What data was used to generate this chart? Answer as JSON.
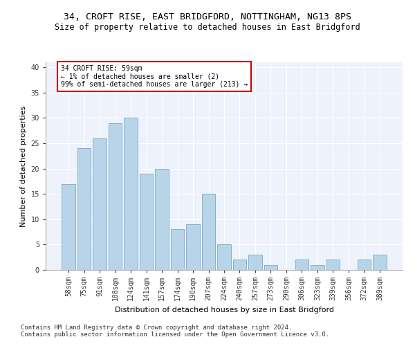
{
  "title_line1": "34, CROFT RISE, EAST BRIDGFORD, NOTTINGHAM, NG13 8PS",
  "title_line2": "Size of property relative to detached houses in East Bridgford",
  "xlabel": "Distribution of detached houses by size in East Bridgford",
  "ylabel": "Number of detached properties",
  "categories": [
    "58sqm",
    "75sqm",
    "91sqm",
    "108sqm",
    "124sqm",
    "141sqm",
    "157sqm",
    "174sqm",
    "190sqm",
    "207sqm",
    "224sqm",
    "240sqm",
    "257sqm",
    "273sqm",
    "290sqm",
    "306sqm",
    "323sqm",
    "339sqm",
    "356sqm",
    "372sqm",
    "389sqm"
  ],
  "values": [
    17,
    24,
    26,
    29,
    30,
    19,
    20,
    8,
    9,
    15,
    5,
    2,
    3,
    1,
    0,
    2,
    1,
    2,
    0,
    2,
    3
  ],
  "bar_color": "#b8d4e8",
  "bar_edge_color": "#7aaabf",
  "annotation_text": "34 CROFT RISE: 59sqm\n← 1% of detached houses are smaller (2)\n99% of semi-detached houses are larger (213) →",
  "annotation_box_color": "#ffffff",
  "annotation_box_edge": "#cc0000",
  "ylim": [
    0,
    41
  ],
  "yticks": [
    0,
    5,
    10,
    15,
    20,
    25,
    30,
    35,
    40
  ],
  "footer_line1": "Contains HM Land Registry data © Crown copyright and database right 2024.",
  "footer_line2": "Contains public sector information licensed under the Open Government Licence v3.0.",
  "bg_color": "#eef2fb",
  "title_fontsize": 9.5,
  "subtitle_fontsize": 8.5,
  "axis_label_fontsize": 8,
  "tick_fontsize": 7,
  "annotation_fontsize": 7,
  "footer_fontsize": 6.5
}
